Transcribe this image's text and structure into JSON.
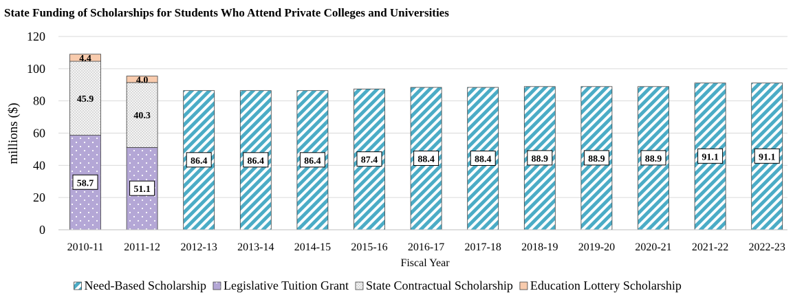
{
  "chart_data": {
    "type": "bar",
    "stacked": true,
    "title": "State Funding of Scholarships for Students Who Attend Private Colleges and Universities",
    "xlabel": "Fiscal Year",
    "ylabel": "millions ($)",
    "ylim": [
      0,
      120
    ],
    "yticks": [
      0,
      20,
      40,
      60,
      80,
      100,
      120
    ],
    "grid": true,
    "legend_position": "bottom",
    "categories": [
      "2010-11",
      "2011-12",
      "2012-13",
      "2013-14",
      "2014-15",
      "2015-16",
      "2016-17",
      "2017-18",
      "2018-19",
      "2019-20",
      "2020-21",
      "2021-22",
      "2022-23"
    ],
    "series": [
      {
        "name": "Need-Based Scholarship",
        "pattern": "diagonal-stripes",
        "color": "#4bacc6",
        "values": [
          null,
          null,
          86.4,
          86.4,
          86.4,
          87.4,
          88.4,
          88.4,
          88.9,
          88.9,
          88.9,
          91.1,
          91.1
        ],
        "labels": [
          "",
          "",
          "86.4",
          "86.4",
          "86.4",
          "87.4",
          "88.4",
          "88.4",
          "88.9",
          "88.9",
          "88.9",
          "91.1",
          "91.1"
        ]
      },
      {
        "name": "Legislative Tuition Grant",
        "pattern": "dots",
        "color": "#b4a7d6",
        "values": [
          58.7,
          51.1,
          null,
          null,
          null,
          null,
          null,
          null,
          null,
          null,
          null,
          null,
          null
        ],
        "labels": [
          "58.7",
          "51.1",
          "",
          "",
          "",
          "",
          "",
          "",
          "",
          "",
          "",
          "",
          ""
        ]
      },
      {
        "name": "State Contractual Scholarship",
        "pattern": "fine-dots",
        "color": "#e6e6e6",
        "values": [
          45.9,
          40.3,
          null,
          null,
          null,
          null,
          null,
          null,
          null,
          null,
          null,
          null,
          null
        ],
        "labels": [
          "45.9",
          "40.3",
          "",
          "",
          "",
          "",
          "",
          "",
          "",
          "",
          "",
          "",
          ""
        ]
      },
      {
        "name": "Education Lottery Scholarship",
        "pattern": "solid",
        "color": "#f8cbad",
        "values": [
          4.4,
          4.0,
          null,
          null,
          null,
          null,
          null,
          null,
          null,
          null,
          null,
          null,
          null
        ],
        "labels": [
          "4.4",
          "4.0",
          "",
          "",
          "",
          "",
          "",
          "",
          "",
          "",
          "",
          "",
          ""
        ]
      }
    ]
  }
}
